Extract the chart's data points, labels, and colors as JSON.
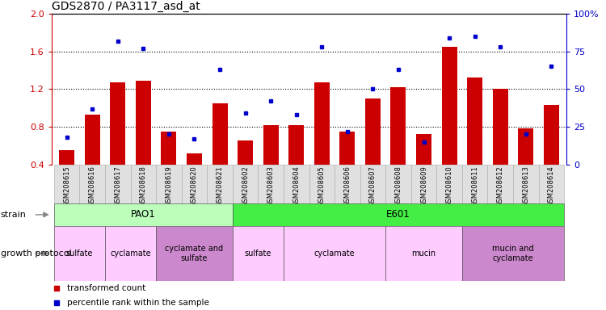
{
  "title": "GDS2870 / PA3117_asd_at",
  "samples": [
    "GSM208615",
    "GSM208616",
    "GSM208617",
    "GSM208618",
    "GSM208619",
    "GSM208620",
    "GSM208621",
    "GSM208602",
    "GSM208603",
    "GSM208604",
    "GSM208605",
    "GSM208606",
    "GSM208607",
    "GSM208608",
    "GSM208609",
    "GSM208610",
    "GSM208611",
    "GSM208612",
    "GSM208613",
    "GSM208614"
  ],
  "transformed_count": [
    0.55,
    0.93,
    1.27,
    1.29,
    0.75,
    0.52,
    1.05,
    0.65,
    0.82,
    0.82,
    1.27,
    0.75,
    1.1,
    1.22,
    0.72,
    1.65,
    1.32,
    1.2,
    0.78,
    1.03
  ],
  "percentile_rank": [
    18,
    37,
    82,
    77,
    20,
    17,
    63,
    34,
    42,
    33,
    78,
    22,
    50,
    63,
    15,
    84,
    85,
    78,
    20,
    65
  ],
  "ylim_left": [
    0.4,
    2.0
  ],
  "ylim_right": [
    0,
    100
  ],
  "yticks_left": [
    0.4,
    0.8,
    1.2,
    1.6,
    2.0
  ],
  "yticks_right": [
    0,
    25,
    50,
    75,
    100
  ],
  "bar_color": "#cc0000",
  "dot_color": "#0000cc",
  "strain_row": [
    {
      "label": "PAO1",
      "start": 0,
      "end": 6,
      "color": "#bbffbb"
    },
    {
      "label": "E601",
      "start": 7,
      "end": 19,
      "color": "#44ee44"
    }
  ],
  "protocol_row": [
    {
      "label": "sulfate",
      "start": 0,
      "end": 1,
      "color": "#ffccff"
    },
    {
      "label": "cyclamate",
      "start": 2,
      "end": 3,
      "color": "#ffccff"
    },
    {
      "label": "cyclamate and\nsulfate",
      "start": 4,
      "end": 6,
      "color": "#cc88cc"
    },
    {
      "label": "sulfate",
      "start": 7,
      "end": 8,
      "color": "#ffccff"
    },
    {
      "label": "cyclamate",
      "start": 9,
      "end": 12,
      "color": "#ffccff"
    },
    {
      "label": "mucin",
      "start": 13,
      "end": 15,
      "color": "#ffccff"
    },
    {
      "label": "mucin and\ncyclamate",
      "start": 16,
      "end": 19,
      "color": "#cc88cc"
    }
  ],
  "tick_color_left": "#cc0000",
  "tick_color_right": "#0000cc",
  "gridlines": [
    0.8,
    1.2,
    1.6
  ]
}
